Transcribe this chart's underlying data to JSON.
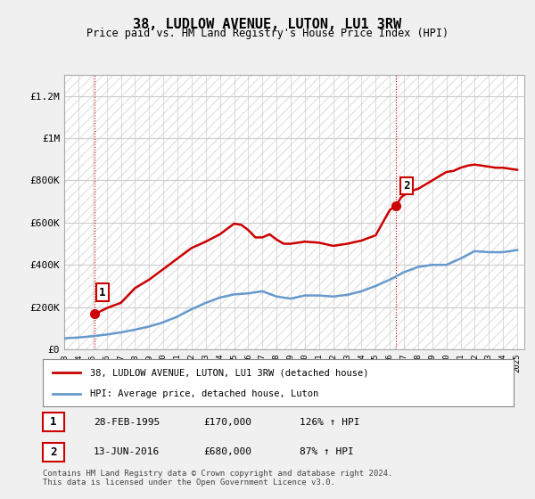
{
  "title": "38, LUDLOW AVENUE, LUTON, LU1 3RW",
  "subtitle": "Price paid vs. HM Land Registry's House Price Index (HPI)",
  "property_label": "38, LUDLOW AVENUE, LUTON, LU1 3RW (detached house)",
  "hpi_label": "HPI: Average price, detached house, Luton",
  "sale1_label": "1",
  "sale1_date": "28-FEB-1995",
  "sale1_price": "£170,000",
  "sale1_hpi": "126% ↑ HPI",
  "sale2_label": "2",
  "sale2_date": "13-JUN-2016",
  "sale2_price": "£680,000",
  "sale2_hpi": "87% ↑ HPI",
  "footer": "Contains HM Land Registry data © Crown copyright and database right 2024.\nThis data is licensed under the Open Government Licence v3.0.",
  "ylim": [
    0,
    1300000
  ],
  "yticks": [
    0,
    200000,
    400000,
    600000,
    800000,
    1000000,
    1200000
  ],
  "ytick_labels": [
    "£0",
    "£200K",
    "£400K",
    "£600K",
    "£800K",
    "£1M",
    "£1.2M"
  ],
  "background_color": "#f0f0f0",
  "plot_bg_color": "#ffffff",
  "grid_color": "#cccccc",
  "property_line_color": "#cc0000",
  "hpi_line_color": "#6699cc",
  "sale1_x": 1995.15,
  "sale1_y": 170000,
  "sale2_x": 2016.45,
  "sale2_y": 680000,
  "hpi_years": [
    1993,
    1994,
    1995,
    1996,
    1997,
    1998,
    1999,
    2000,
    2001,
    2002,
    2003,
    2004,
    2005,
    2006,
    2007,
    2008,
    2009,
    2010,
    2011,
    2012,
    2013,
    2014,
    2015,
    2016,
    2017,
    2018,
    2019,
    2020,
    2021,
    2022,
    2023,
    2024,
    2025
  ],
  "hpi_values": [
    52000,
    56000,
    62000,
    70000,
    80000,
    93000,
    108000,
    128000,
    155000,
    190000,
    220000,
    245000,
    260000,
    265000,
    275000,
    250000,
    240000,
    255000,
    255000,
    250000,
    258000,
    275000,
    300000,
    330000,
    365000,
    390000,
    400000,
    400000,
    430000,
    465000,
    460000,
    460000,
    470000
  ],
  "prop_years": [
    1993,
    1994,
    1995,
    1995.5,
    1996,
    1997,
    1997.5,
    1998,
    1999,
    2000,
    2001,
    2002,
    2003,
    2004,
    2005,
    2005.5,
    2006,
    2006.5,
    2007,
    2007.5,
    2008,
    2008.5,
    2009,
    2010,
    2011,
    2012,
    2013,
    2014,
    2015,
    2015.5,
    2016,
    2016.45,
    2016.8,
    2017,
    2017.5,
    2018,
    2018.5,
    2019,
    2019.5,
    2020,
    2020.5,
    2021,
    2021.5,
    2022,
    2022.5,
    2023,
    2023.5,
    2024,
    2024.5,
    2025
  ],
  "prop_values": [
    null,
    null,
    170000,
    178000,
    195000,
    220000,
    255000,
    290000,
    330000,
    380000,
    430000,
    480000,
    510000,
    545000,
    595000,
    590000,
    565000,
    530000,
    530000,
    545000,
    520000,
    500000,
    500000,
    510000,
    505000,
    490000,
    500000,
    515000,
    540000,
    600000,
    660000,
    680000,
    720000,
    730000,
    750000,
    760000,
    780000,
    800000,
    820000,
    840000,
    845000,
    860000,
    870000,
    875000,
    870000,
    865000,
    860000,
    860000,
    855000,
    850000
  ],
  "xticks": [
    1993,
    1994,
    1995,
    1996,
    1997,
    1998,
    1999,
    2000,
    2001,
    2002,
    2003,
    2004,
    2005,
    2006,
    2007,
    2008,
    2009,
    2010,
    2011,
    2012,
    2013,
    2014,
    2015,
    2016,
    2017,
    2018,
    2019,
    2020,
    2021,
    2022,
    2023,
    2024,
    2025
  ]
}
